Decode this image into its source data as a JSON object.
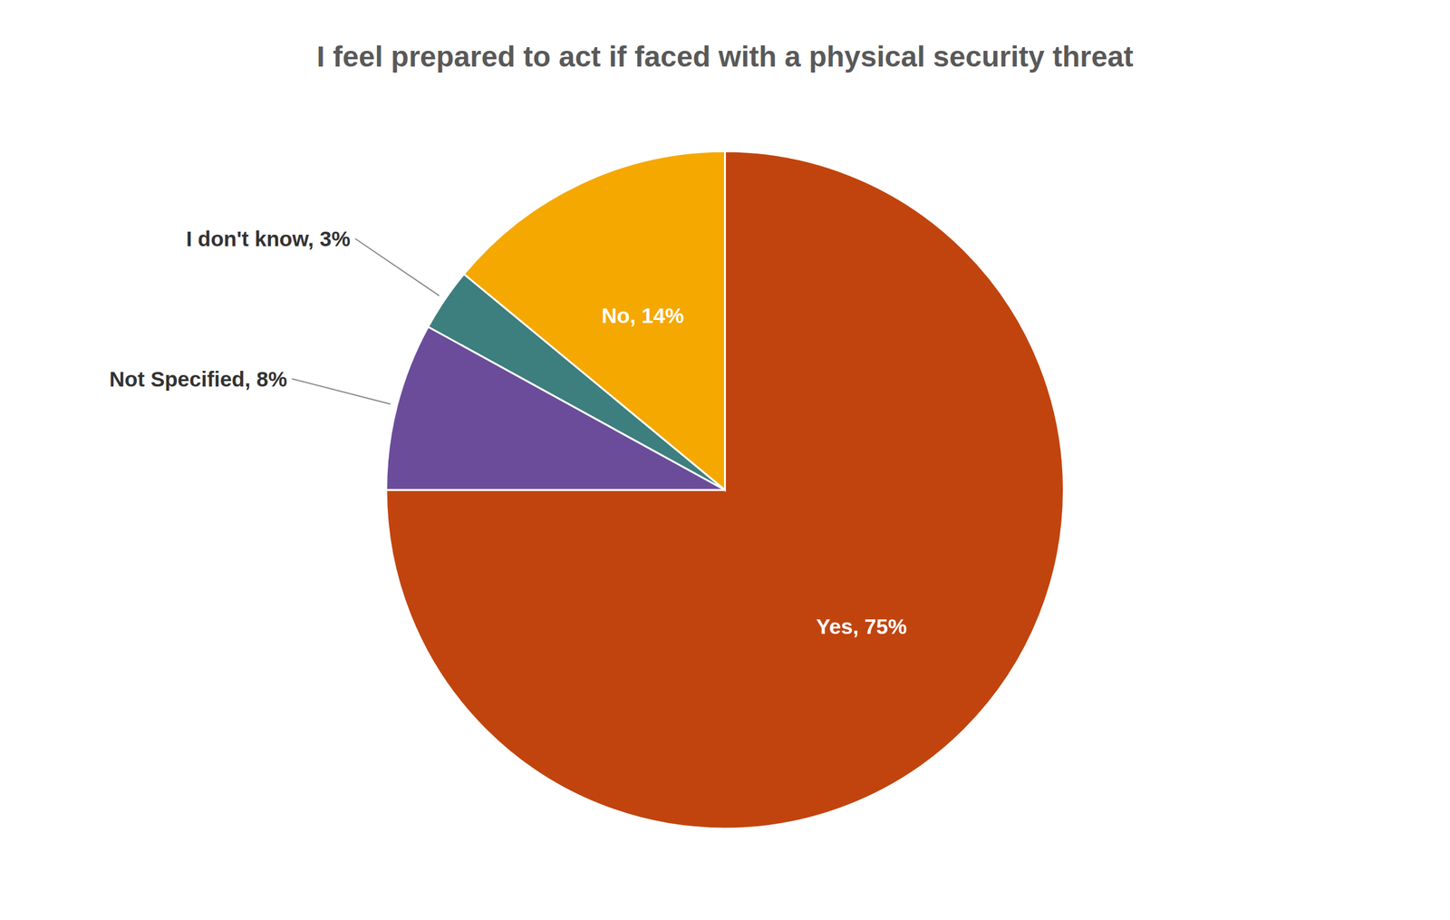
{
  "chart_data": {
    "type": "pie",
    "title": "I feel prepared to act if faced with a physical security threat",
    "categories": [
      "Yes",
      "Not Specified",
      "I don't know",
      "No"
    ],
    "values": [
      75,
      8,
      3,
      14
    ],
    "colors": [
      "#C1440E",
      "#6B4C9A",
      "#3D7E7E",
      "#F5A800"
    ],
    "value_labels": [
      "Yes, 75%",
      "Not Specified, 8%",
      "I don't know, 3%",
      "No, 14%"
    ],
    "data_labels": true
  }
}
